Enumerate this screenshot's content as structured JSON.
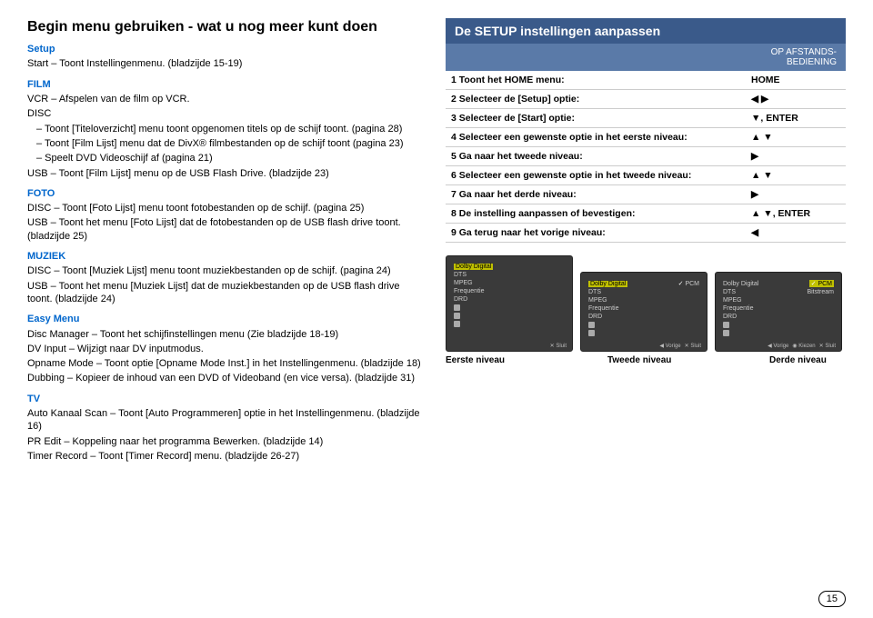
{
  "left": {
    "title": "Begin menu gebruiken - wat u nog meer kunt doen",
    "sections": [
      {
        "cat": "Setup",
        "lines": [
          "Start – Toont Instellingenmenu. (bladzijde 15-19)"
        ]
      },
      {
        "cat": "FILM",
        "lines": [
          "VCR – Afspelen van de film op VCR.",
          "DISC",
          "– Toont [Titeloverzicht] menu toont opgenomen titels op de schijf toont. (pagina 28)",
          "– Toont [Film Lijst] menu dat de DivX® filmbestanden op de schijf toont (pagina 23)",
          "– Speelt DVD Videoschijf af (pagina 21)",
          "USB – Toont [Film Lijst] menu op de USB Flash Drive. (bladzijde 23)"
        ]
      },
      {
        "cat": "FOTO",
        "lines": [
          "DISC – Toont [Foto Lijst] menu toont fotobestanden op de schijf. (pagina 25)",
          "USB – Toont het menu [Foto Lijst] dat de fotobestanden op de USB flash drive toont. (bladzijde 25)"
        ]
      },
      {
        "cat": "MUZIEK",
        "lines": [
          "DISC – Toont [Muziek Lijst] menu toont muziekbestanden op de schijf. (pagina 24)",
          "USB – Toont het menu [Muziek Lijst] dat de muziekbestanden op de USB flash drive toont. (bladzijde 24)"
        ]
      },
      {
        "cat": "Easy Menu",
        "lines": [
          "Disc Manager – Toont het schijfinstellingen menu (Zie bladzijde 18-19)",
          "DV Input – Wijzigt naar DV inputmodus.",
          "Opname Mode – Toont optie [Opname Mode Inst.] in het Instellingenmenu. (bladzijde 18)",
          "Dubbing – Kopieer de inhoud van een DVD of Videoband (en vice versa). (bladzijde 31)"
        ]
      },
      {
        "cat": "TV",
        "lines": [
          "Auto Kanaal Scan – Toont [Auto Programmeren] optie in het Instellingenmenu. (bladzijde 16)",
          "PR Edit – Koppeling naar het programma Bewerken. (bladzijde 14)",
          "Timer Record – Toont [Timer Record] menu. (bladzijde 26-27)"
        ]
      }
    ]
  },
  "right": {
    "panel_title": "De SETUP instellingen aanpassen",
    "sub_header": "OP AFSTANDS-\nBEDIENING",
    "rows": [
      {
        "n": "1",
        "text": "Toont het HOME menu:",
        "key": "HOME"
      },
      {
        "n": "2",
        "text": "Selecteer de [Setup] optie:",
        "key": "◀ ▶"
      },
      {
        "n": "3",
        "text": "Selecteer de [Start] optie:",
        "key": "▼, ENTER"
      },
      {
        "n": "4",
        "text": "Selecteer een gewenste optie in het eerste niveau:",
        "key": "▲ ▼"
      },
      {
        "n": "5",
        "text": "Ga naar het tweede niveau:",
        "key": "▶"
      },
      {
        "n": "6",
        "text": "Selecteer een gewenste optie in het tweede niveau:",
        "key": "▲ ▼"
      },
      {
        "n": "7",
        "text": "Ga naar het derde niveau:",
        "key": "▶"
      },
      {
        "n": "8",
        "text": "De instelling aanpassen of bevestigen:",
        "key": "▲ ▼, ENTER"
      },
      {
        "n": "9",
        "text": "Ga terug naar het vorige niveau:",
        "key": "◀"
      }
    ],
    "levels": {
      "l1": "Eerste niveau",
      "l2": "Tweede niveau",
      "l3": "Derde niveau"
    },
    "screen_items": {
      "col1": [
        "Dolby Digital",
        "DTS",
        "MPEG",
        "Frequentie",
        "DRD"
      ],
      "col2_hdr": "Dolby Digital",
      "col2": [
        "DTS",
        "MPEG",
        "Frequentie",
        "DRD"
      ],
      "col3_a": "PCM",
      "col3_b": "Bitstream",
      "footer_prev": "◀ Vorige",
      "footer_sel": "◉ Kiezen",
      "footer_close": "✕ Sluit"
    }
  },
  "page_number": "15"
}
